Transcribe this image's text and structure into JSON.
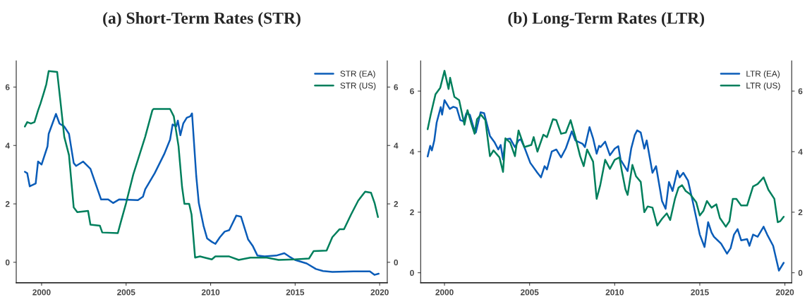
{
  "chart_data": [
    {
      "type": "line",
      "title": "(a) Short-Term Rates (STR)",
      "xlim": [
        1998.5,
        2020.45
      ],
      "xticks": [
        2000,
        2005,
        2010,
        2015,
        2020
      ],
      "ylim": [
        -0.7,
        6.9
      ],
      "yticks": [
        0,
        2,
        4,
        6
      ],
      "y2lim": [
        -0.7,
        6.9
      ],
      "y2ticks": [
        0,
        2,
        4,
        6
      ],
      "grid": false,
      "legend": "top right",
      "series": [
        {
          "name": "STR (EA)",
          "color": "#0a5cb8",
          "x": [
            1999.01,
            1999.15,
            1999.3,
            1999.65,
            1999.79,
            2000.0,
            2000.35,
            2000.42,
            2000.85,
            2001.06,
            2001.34,
            2001.62,
            2001.9,
            2002.04,
            2002.46,
            2002.89,
            2003.31,
            2003.52,
            2003.94,
            2004.23,
            2004.58,
            2005.7,
            2006.0,
            2006.13,
            2006.69,
            2007.25,
            2007.6,
            2007.75,
            2007.96,
            2008.06,
            2008.21,
            2008.38,
            2008.59,
            2008.8,
            2008.9,
            2009.15,
            2009.3,
            2009.58,
            2009.79,
            2010.07,
            2010.28,
            2010.55,
            2010.83,
            2011.1,
            2011.52,
            2011.8,
            2012.22,
            2012.5,
            2012.77,
            2013.19,
            2013.88,
            2014.36,
            2014.64,
            2014.99,
            2015.68,
            2016.23,
            2016.65,
            2017.2,
            2018.45,
            2019.42,
            2019.7,
            2019.94
          ],
          "values": [
            3.1,
            3.05,
            2.6,
            2.7,
            3.45,
            3.35,
            3.97,
            4.4,
            5.08,
            4.75,
            4.65,
            4.4,
            3.4,
            3.3,
            3.45,
            3.2,
            2.5,
            2.15,
            2.15,
            2.03,
            2.15,
            2.13,
            2.25,
            2.5,
            3.05,
            3.7,
            4.2,
            4.72,
            4.65,
            4.85,
            4.35,
            4.75,
            4.95,
            5.0,
            5.1,
            2.95,
            2.03,
            1.25,
            0.82,
            0.7,
            0.63,
            0.86,
            1.05,
            1.1,
            1.6,
            1.56,
            0.78,
            0.55,
            0.23,
            0.2,
            0.23,
            0.31,
            0.2,
            0.08,
            -0.04,
            -0.23,
            -0.3,
            -0.33,
            -0.31,
            -0.31,
            -0.43,
            -0.39
          ]
        },
        {
          "name": "STR (US)",
          "color": "#007f5c",
          "x": [
            1999.01,
            1999.15,
            1999.37,
            1999.58,
            1999.79,
            1999.93,
            2000.14,
            2000.28,
            2000.42,
            2000.92,
            2001.13,
            2001.34,
            2001.62,
            2001.9,
            2002.11,
            2002.75,
            2002.89,
            2003.45,
            2003.59,
            2004.51,
            2004.72,
            2005.0,
            2005.42,
            2006.13,
            2006.55,
            2006.62,
            2007.6,
            2007.82,
            2008.1,
            2008.31,
            2008.45,
            2008.73,
            2008.87,
            2009.08,
            2009.37,
            2009.65,
            2010.07,
            2010.28,
            2011.1,
            2011.66,
            2012.35,
            2013.32,
            2014.02,
            2014.99,
            2015.82,
            2016.09,
            2016.86,
            2017.2,
            2017.62,
            2017.89,
            2018.31,
            2018.73,
            2019.14,
            2019.49,
            2019.7,
            2019.9
          ],
          "values": [
            4.65,
            4.8,
            4.75,
            4.8,
            5.2,
            5.43,
            5.82,
            6.1,
            6.55,
            6.52,
            5.43,
            4.3,
            3.67,
            1.88,
            1.72,
            1.76,
            1.29,
            1.25,
            1.02,
            1.0,
            1.45,
            2.03,
            3.0,
            4.3,
            5.2,
            5.25,
            5.25,
            5.0,
            3.98,
            2.58,
            2.0,
            2.0,
            1.64,
            0.16,
            0.2,
            0.16,
            0.1,
            0.2,
            0.2,
            0.08,
            0.16,
            0.16,
            0.08,
            0.1,
            0.13,
            0.38,
            0.4,
            0.86,
            1.13,
            1.13,
            1.64,
            2.11,
            2.42,
            2.38,
            2.03,
            1.55
          ]
        }
      ]
    },
    {
      "type": "line",
      "title": "(b) Long-Term Rates (LTR)",
      "xlim": [
        1998.6,
        2020.4
      ],
      "xticks": [
        2000,
        2005,
        2010,
        2015,
        2020
      ],
      "ylim": [
        -0.33,
        7.0
      ],
      "yticks": [
        0,
        2,
        4,
        6
      ],
      "y2lim": [
        -0.33,
        7.0
      ],
      "y2ticks": [
        0,
        2,
        4,
        6
      ],
      "grid": false,
      "legend": "top right",
      "series": [
        {
          "name": "LTR (EA)",
          "color": "#0a5cb8",
          "x": [
            1999.01,
            1999.16,
            1999.26,
            1999.4,
            1999.54,
            1999.78,
            1999.86,
            2000.0,
            2000.31,
            2000.52,
            2000.72,
            2000.93,
            2001.14,
            2001.28,
            2001.49,
            2001.7,
            2001.84,
            2002.12,
            2002.33,
            2002.67,
            2002.95,
            2003.16,
            2003.3,
            2003.44,
            2003.58,
            2003.86,
            2004.14,
            2004.35,
            2004.48,
            2004.69,
            2005.04,
            2005.46,
            2005.67,
            2005.88,
            2006.02,
            2006.3,
            2006.57,
            2006.85,
            2007.13,
            2007.48,
            2007.69,
            2008.11,
            2008.25,
            2008.52,
            2008.73,
            2008.94,
            2009.08,
            2009.17,
            2009.44,
            2009.72,
            2010.0,
            2010.21,
            2010.35,
            2010.63,
            2010.76,
            2010.97,
            2011.18,
            2011.32,
            2011.53,
            2011.74,
            2011.88,
            2012.22,
            2012.43,
            2012.78,
            2012.99,
            2013.19,
            2013.4,
            2013.68,
            2013.82,
            2014.03,
            2014.31,
            2014.58,
            2015.0,
            2015.28,
            2015.49,
            2015.69,
            2015.83,
            2016.25,
            2016.6,
            2016.81,
            2017.01,
            2017.22,
            2017.43,
            2017.78,
            2017.92,
            2018.13,
            2018.4,
            2018.75,
            2018.96,
            2019.31,
            2019.65,
            2019.93
          ],
          "values": [
            3.84,
            4.19,
            4.04,
            4.37,
            4.96,
            5.47,
            5.22,
            5.7,
            5.41,
            5.48,
            5.44,
            5.04,
            5.0,
            5.26,
            5.22,
            4.81,
            4.63,
            5.3,
            5.27,
            4.52,
            4.3,
            4.07,
            4.22,
            3.74,
            4.41,
            4.43,
            4.15,
            4.37,
            4.41,
            4.15,
            3.63,
            3.3,
            3.15,
            3.52,
            3.41,
            4.0,
            4.07,
            3.81,
            4.11,
            4.67,
            4.37,
            4.26,
            4.15,
            4.81,
            4.44,
            3.93,
            4.19,
            4.15,
            4.33,
            3.88,
            4.1,
            4.18,
            3.73,
            3.47,
            3.36,
            4.1,
            4.55,
            4.7,
            4.63,
            4.1,
            4.37,
            3.3,
            3.52,
            2.37,
            2.11,
            3.0,
            2.7,
            3.37,
            3.15,
            3.3,
            3.04,
            2.37,
            1.26,
            0.85,
            1.67,
            1.33,
            1.19,
            0.96,
            0.63,
            0.81,
            1.26,
            1.44,
            1.07,
            1.11,
            0.89,
            1.26,
            1.19,
            1.52,
            1.26,
            0.89,
            0.07,
            0.33
          ]
        },
        {
          "name": "LTR (US)",
          "color": "#007f5c",
          "x": [
            1999.01,
            1999.19,
            1999.36,
            1999.47,
            1999.75,
            2000.0,
            2000.24,
            2000.33,
            2000.58,
            2000.86,
            2001.07,
            2001.17,
            2001.35,
            2001.56,
            2001.77,
            2001.91,
            2002.14,
            2002.4,
            2002.67,
            2002.88,
            2003.23,
            2003.44,
            2003.58,
            2003.86,
            2004.14,
            2004.35,
            2004.69,
            2005.1,
            2005.24,
            2005.46,
            2005.81,
            2006.02,
            2006.37,
            2006.57,
            2006.85,
            2007.13,
            2007.41,
            2007.69,
            2007.97,
            2008.18,
            2008.38,
            2008.73,
            2008.94,
            2009.15,
            2009.44,
            2009.72,
            2010.0,
            2010.28,
            2010.42,
            2010.63,
            2010.76,
            2011.04,
            2011.25,
            2011.53,
            2011.74,
            2011.94,
            2012.22,
            2012.5,
            2012.78,
            2013.06,
            2013.26,
            2013.54,
            2013.75,
            2013.96,
            2014.17,
            2014.44,
            2014.79,
            2015.0,
            2015.21,
            2015.42,
            2015.69,
            2015.97,
            2016.18,
            2016.53,
            2016.74,
            2016.94,
            2017.15,
            2017.43,
            2017.78,
            2018.13,
            2018.4,
            2018.75,
            2019.03,
            2019.38,
            2019.58,
            2019.72,
            2019.93
          ],
          "values": [
            4.74,
            5.22,
            5.63,
            5.89,
            6.11,
            6.67,
            6.07,
            6.44,
            5.81,
            5.7,
            5.15,
            4.89,
            5.37,
            4.96,
            4.59,
            5.07,
            5.22,
            5.04,
            3.85,
            4.04,
            3.81,
            3.33,
            4.44,
            4.3,
            3.85,
            4.7,
            4.15,
            4.22,
            4.48,
            4.0,
            4.56,
            4.48,
            5.07,
            5.04,
            4.59,
            4.63,
            5.04,
            4.48,
            3.85,
            3.52,
            4.07,
            3.67,
            2.44,
            2.89,
            3.73,
            3.43,
            3.73,
            3.81,
            3.36,
            2.76,
            2.57,
            3.56,
            3.19,
            3.0,
            2.0,
            2.19,
            2.15,
            1.56,
            1.78,
            1.96,
            1.74,
            2.44,
            2.81,
            2.89,
            2.7,
            2.59,
            2.33,
            1.89,
            2.04,
            2.37,
            2.15,
            2.26,
            1.81,
            1.52,
            1.7,
            2.44,
            2.44,
            2.22,
            2.22,
            2.85,
            2.93,
            3.15,
            2.74,
            2.44,
            1.67,
            1.7,
            1.85
          ]
        }
      ]
    }
  ]
}
